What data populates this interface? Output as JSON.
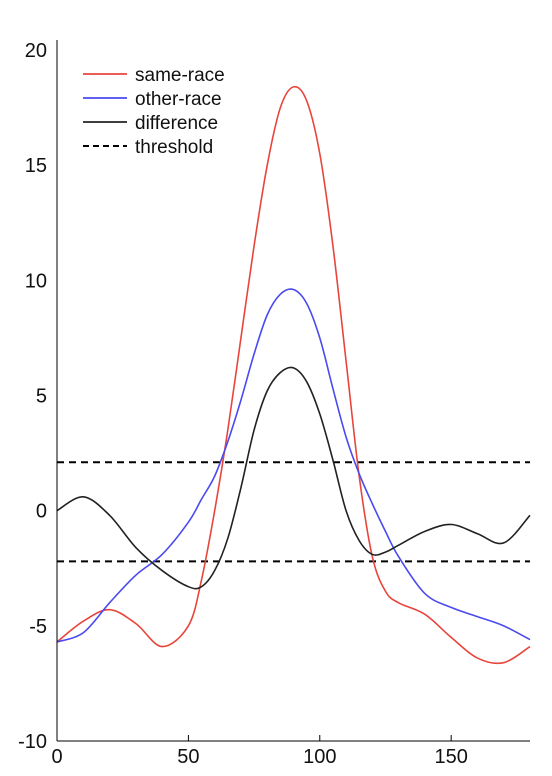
{
  "chart_data": {
    "type": "line",
    "title": "",
    "xlabel": "",
    "ylabel": "",
    "xlim": [
      0,
      180
    ],
    "ylim": [
      -10,
      20
    ],
    "xticks": [
      0,
      50,
      100,
      150
    ],
    "yticks": [
      -10,
      -5,
      0,
      5,
      10,
      15,
      20
    ],
    "grid": false,
    "legend": {
      "placement": "top-left"
    },
    "x": [
      0,
      10,
      20,
      30,
      40,
      50,
      55,
      60,
      65,
      70,
      75,
      80,
      85,
      90,
      95,
      100,
      105,
      110,
      115,
      120,
      125,
      130,
      140,
      150,
      160,
      170,
      180
    ],
    "series": [
      {
        "name": "same-race",
        "color": "#e8453c",
        "style": "solid",
        "values": [
          -5.7,
          -4.8,
          -4.3,
          -4.9,
          -5.9,
          -5.0,
          -3.0,
          0.0,
          3.5,
          7.5,
          11.5,
          15.0,
          17.5,
          18.4,
          17.8,
          15.5,
          11.5,
          6.5,
          1.5,
          -2.0,
          -3.5,
          -4.0,
          -4.5,
          -5.5,
          -6.4,
          -6.6,
          -5.9
        ]
      },
      {
        "name": "other-race",
        "color": "#4a4af0",
        "style": "solid",
        "values": [
          -5.7,
          -5.3,
          -4.0,
          -2.8,
          -1.9,
          -0.5,
          0.5,
          1.5,
          3.0,
          4.8,
          6.8,
          8.5,
          9.4,
          9.6,
          9.0,
          7.5,
          5.3,
          3.2,
          1.6,
          0.3,
          -0.9,
          -2.0,
          -3.6,
          -4.2,
          -4.6,
          -5.0,
          -5.6
        ]
      },
      {
        "name": "difference",
        "color": "#222222",
        "style": "solid",
        "values": [
          0.0,
          0.6,
          -0.2,
          -1.6,
          -2.6,
          -3.3,
          -3.3,
          -2.6,
          -1.2,
          1.0,
          3.5,
          5.2,
          6.0,
          6.2,
          5.6,
          4.2,
          2.2,
          0.0,
          -1.3,
          -1.9,
          -1.8,
          -1.5,
          -0.9,
          -0.6,
          -1.0,
          -1.4,
          -0.2
        ]
      },
      {
        "name": "threshold",
        "color": "#000000",
        "style": "dashed",
        "lines": [
          2.1,
          -2.2
        ]
      }
    ]
  }
}
